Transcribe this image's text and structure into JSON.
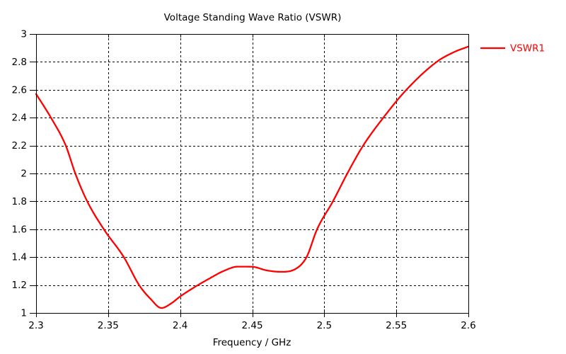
{
  "chart_data": {
    "type": "line",
    "title": "Voltage Standing Wave Ratio (VSWR)",
    "xlabel": "Frequency / GHz",
    "ylabel": "",
    "xlim": [
      2.3,
      2.6
    ],
    "ylim": [
      1,
      3
    ],
    "x_ticks": [
      2.3,
      2.35,
      2.4,
      2.45,
      2.5,
      2.55,
      2.6
    ],
    "x_tick_labels": [
      "2.3",
      "2.35",
      "2.4",
      "2.45",
      "2.5",
      "2.55",
      "2.6"
    ],
    "y_ticks": [
      1,
      1.2,
      1.4,
      1.6,
      1.8,
      2,
      2.2,
      2.4,
      2.6,
      2.8,
      3
    ],
    "y_tick_labels": [
      "1",
      "1.2",
      "1.4",
      "1.6",
      "1.8",
      "2",
      "2.2",
      "2.4",
      "2.6",
      "2.8",
      "3"
    ],
    "grid": true,
    "grid_style": "dashed",
    "legend_position": "outside-top-right",
    "series": [
      {
        "name": "VSWR1",
        "color": "#ff0000",
        "x": [
          2.3,
          2.3103,
          2.3206,
          2.3272,
          2.3355,
          2.347,
          2.3609,
          2.3715,
          2.3795,
          2.387,
          2.394,
          2.4,
          2.41,
          2.42,
          2.43,
          2.44,
          2.45,
          2.46,
          2.47,
          2.48,
          2.4877,
          2.495,
          2.506,
          2.516,
          2.527,
          2.541,
          2.557,
          2.578,
          2.59,
          2.6
        ],
        "y": [
          2.57,
          2.4,
          2.2,
          2.0,
          1.8,
          1.6,
          1.4,
          1.2,
          1.1,
          1.035,
          1.07,
          1.118,
          1.185,
          1.245,
          1.3,
          1.332,
          1.331,
          1.305,
          1.295,
          1.315,
          1.4,
          1.6,
          1.8,
          2.0,
          2.2,
          2.4,
          2.6,
          2.8,
          2.87,
          2.91
        ]
      }
    ]
  },
  "colors": {
    "background": "#ffffff",
    "axis": "#000000",
    "text": "#000000"
  }
}
